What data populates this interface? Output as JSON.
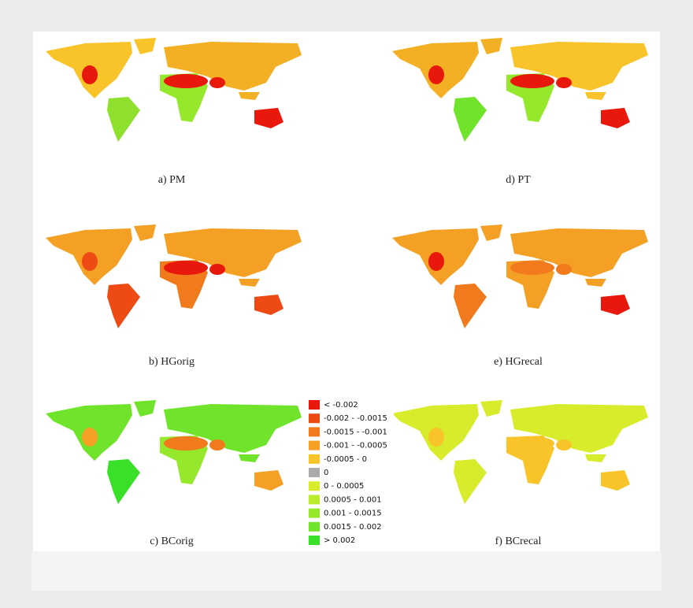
{
  "panels": [
    {
      "caption": "a) PM"
    },
    {
      "caption": "d) PT"
    },
    {
      "caption": "b) HGorig"
    },
    {
      "caption": "e) HGrecal"
    },
    {
      "caption": "c) BCorig"
    },
    {
      "caption": "f) BCrecal"
    }
  ],
  "legend": [
    {
      "label": "< -0.002",
      "color": "#e8180c"
    },
    {
      "label": "-0.002 - -0.0015",
      "color": "#ee4a14"
    },
    {
      "label": "-0.0015 - -0.001",
      "color": "#f07a1c"
    },
    {
      "label": "-0.001 - -0.0005",
      "color": "#f4a024"
    },
    {
      "label": "-0.0005 - 0",
      "color": "#f8c42a"
    },
    {
      "label": "0",
      "color": "#aaaaaa"
    },
    {
      "label": "0 - 0.0005",
      "color": "#d8ec2c"
    },
    {
      "label": "0.0005 - 0.001",
      "color": "#b8ec2c"
    },
    {
      "label": "0.001 - 0.0015",
      "color": "#96e82c"
    },
    {
      "label": "0.0015 - 0.002",
      "color": "#70e42a"
    },
    {
      "label": "> 0.002",
      "color": "#38e028"
    }
  ]
}
